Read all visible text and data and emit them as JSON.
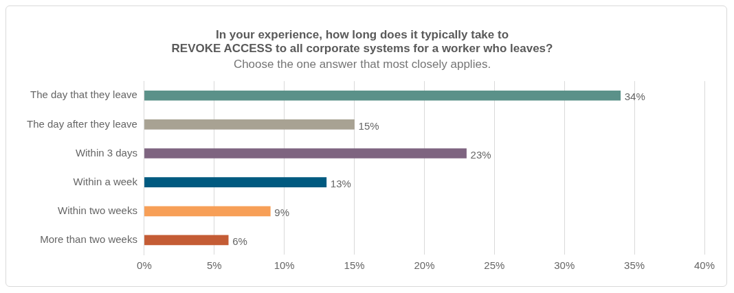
{
  "chart_data": {
    "type": "bar",
    "orientation": "horizontal",
    "title": [
      "In your experience, how long does it typically take to",
      "REVOKE ACCESS to all corporate systems for a worker who leaves?"
    ],
    "subtitle": "Choose the one answer that most closely applies.",
    "categories": [
      "The day that they leave",
      "The day after they leave",
      "Within 3 days",
      "Within a week",
      "Within two weeks",
      "More than two weeks"
    ],
    "values": [
      34,
      15,
      23,
      13,
      9,
      6
    ],
    "colors": [
      "#5b9189",
      "#a8a293",
      "#7e6480",
      "#005a80",
      "#f79f57",
      "#c45c35"
    ],
    "value_labels": [
      "34%",
      "15%",
      "23%",
      "13%",
      "9%",
      "6%"
    ],
    "xlim": [
      0,
      40
    ],
    "xticks": [
      {
        "value": 0,
        "label": "0%"
      },
      {
        "value": 5,
        "label": "5%"
      },
      {
        "value": 10,
        "label": "10%"
      },
      {
        "value": 15,
        "label": "15%"
      },
      {
        "value": 20,
        "label": "20%"
      },
      {
        "value": 25,
        "label": "25%"
      },
      {
        "value": 30,
        "label": "30%"
      },
      {
        "value": 35,
        "label": "35%"
      },
      {
        "value": 40,
        "label": "40%"
      }
    ],
    "grid": "x",
    "legend": false
  }
}
